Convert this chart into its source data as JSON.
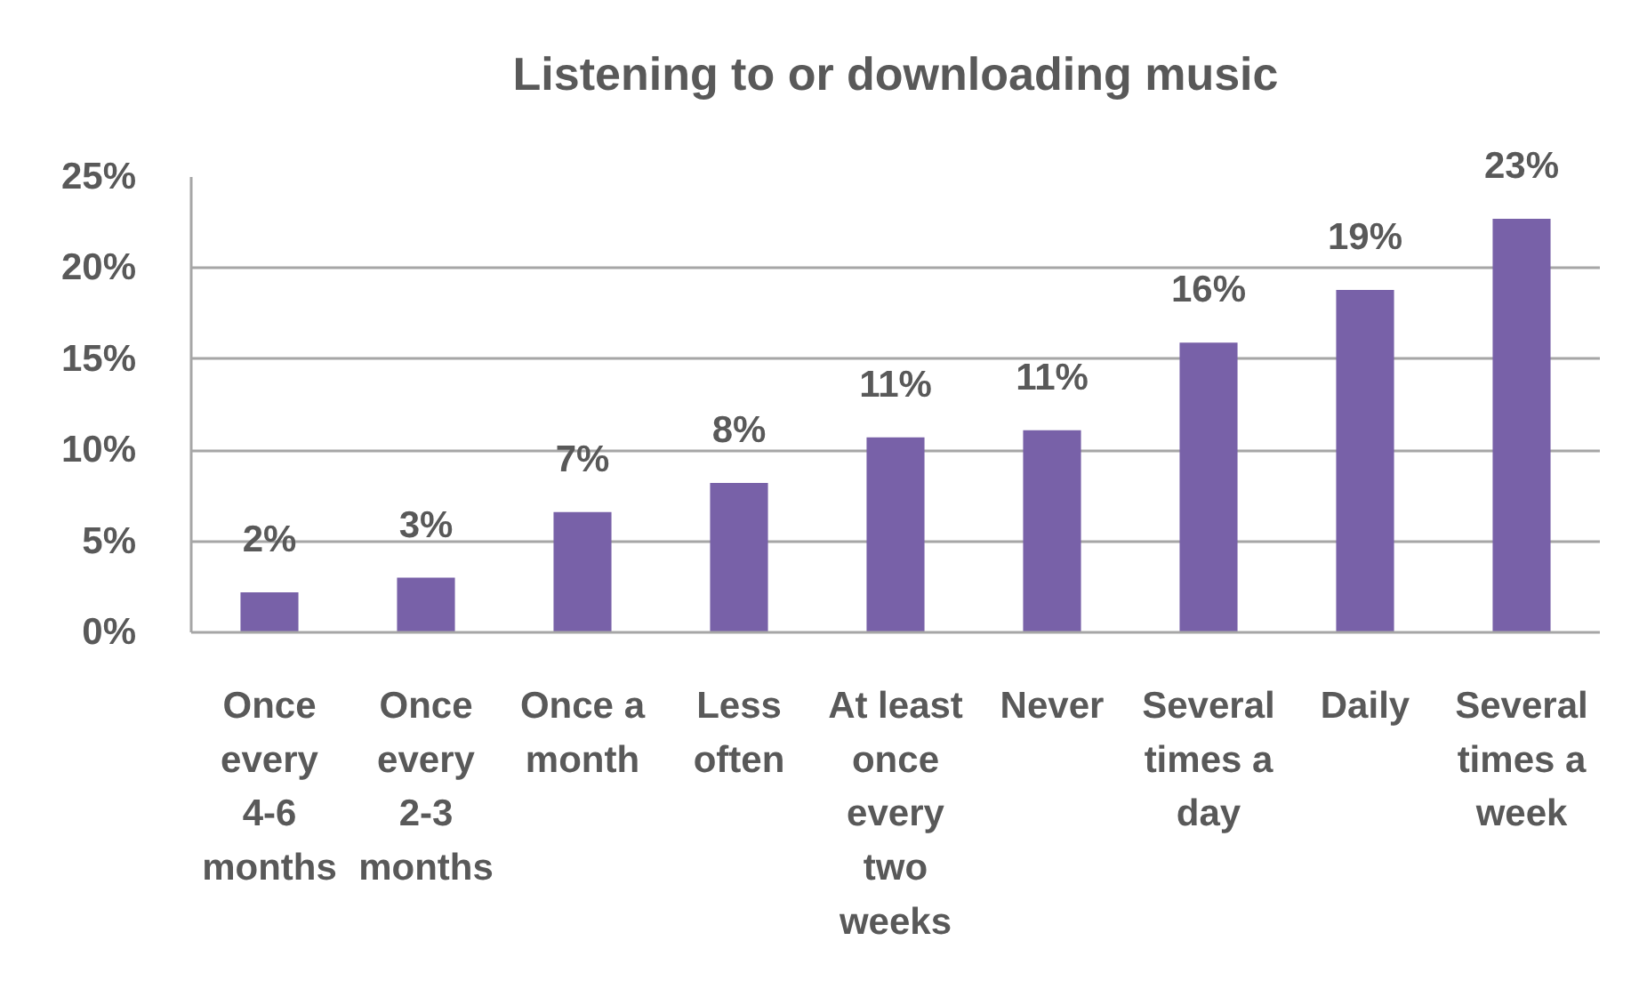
{
  "chart_data": {
    "type": "bar",
    "title": "Listening to or downloading music",
    "categories": [
      "Once every 4-6 months",
      "Once every 2-3 months",
      "Once a month",
      "Less often",
      "At least once every two weeks",
      "Never",
      "Several times a day",
      "Daily",
      "Several times a week"
    ],
    "values": [
      2.2,
      3.0,
      6.6,
      8.2,
      10.7,
      11.1,
      15.9,
      18.8,
      22.7
    ],
    "value_labels": [
      "2%",
      "3%",
      "7%",
      "8%",
      "11%",
      "11%",
      "16%",
      "19%",
      "23%"
    ],
    "color": "#7861a8",
    "ylim": [
      0,
      25
    ],
    "yticks": [
      {
        "value": 0,
        "label": "0%"
      },
      {
        "value": 5,
        "label": "5%"
      },
      {
        "value": 10,
        "label": "10%"
      },
      {
        "value": 15,
        "label": "15%"
      },
      {
        "value": 20,
        "label": "20%"
      },
      {
        "value": 25,
        "label": "25%"
      }
    ],
    "grid": "y"
  }
}
